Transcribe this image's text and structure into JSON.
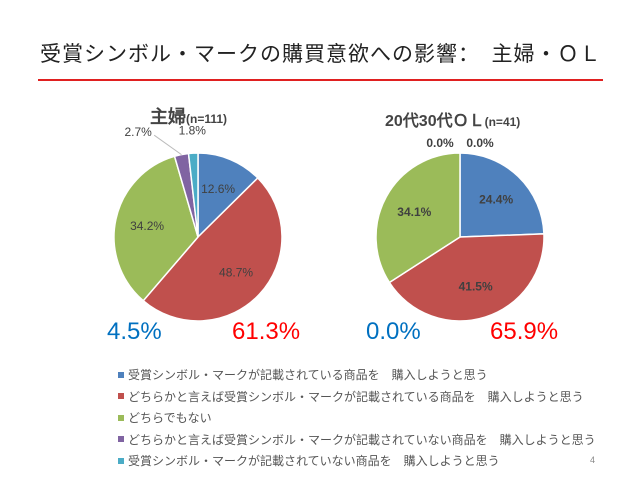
{
  "slide": {
    "title": "受賞シンボル・マークの購買意欲への影響：　主婦・ＯＬ",
    "page_number": "4",
    "accent_color": "#e02020"
  },
  "legend": [
    {
      "label": "受賞シンボル・マークが記載されている商品を　購入しようと思う",
      "color": "#4f81bd"
    },
    {
      "label": "どちらかと言えば受賞シンボル・マークが記載されている商品を　購入しようと思う",
      "color": "#c0504d"
    },
    {
      "label": "どちらでもない",
      "color": "#9bbb59"
    },
    {
      "label": "どちらかと言えば受賞シンボル・マークが記載されていない商品を　購入しようと思う",
      "color": "#8064a2"
    },
    {
      "label": "受賞シンボル・マークが記載されていない商品を　購入しようと思う",
      "color": "#4bacc6"
    }
  ],
  "chart_data": [
    {
      "type": "pie",
      "title": "主婦",
      "title_note": "(n=111)",
      "values": [
        12.6,
        48.7,
        34.2,
        2.7,
        1.8
      ],
      "data_labels": [
        "12.6%",
        "48.7%",
        "34.2%",
        "2.7%",
        "1.8%"
      ],
      "annotations": [
        {
          "text": "4.5%",
          "color": "#0070c0"
        },
        {
          "text": "61.3%",
          "color": "#ff0000"
        }
      ]
    },
    {
      "type": "pie",
      "title": "20代30代ＯＬ",
      "title_note": "(n=41)",
      "values": [
        24.4,
        41.5,
        34.1,
        0.0,
        0.0
      ],
      "data_labels": [
        "24.4%",
        "41.5%",
        "34.1%",
        "0.0%",
        "0.0%"
      ],
      "annotations": [
        {
          "text": "0.0%",
          "color": "#0070c0"
        },
        {
          "text": "65.9%",
          "color": "#ff0000"
        }
      ]
    }
  ]
}
